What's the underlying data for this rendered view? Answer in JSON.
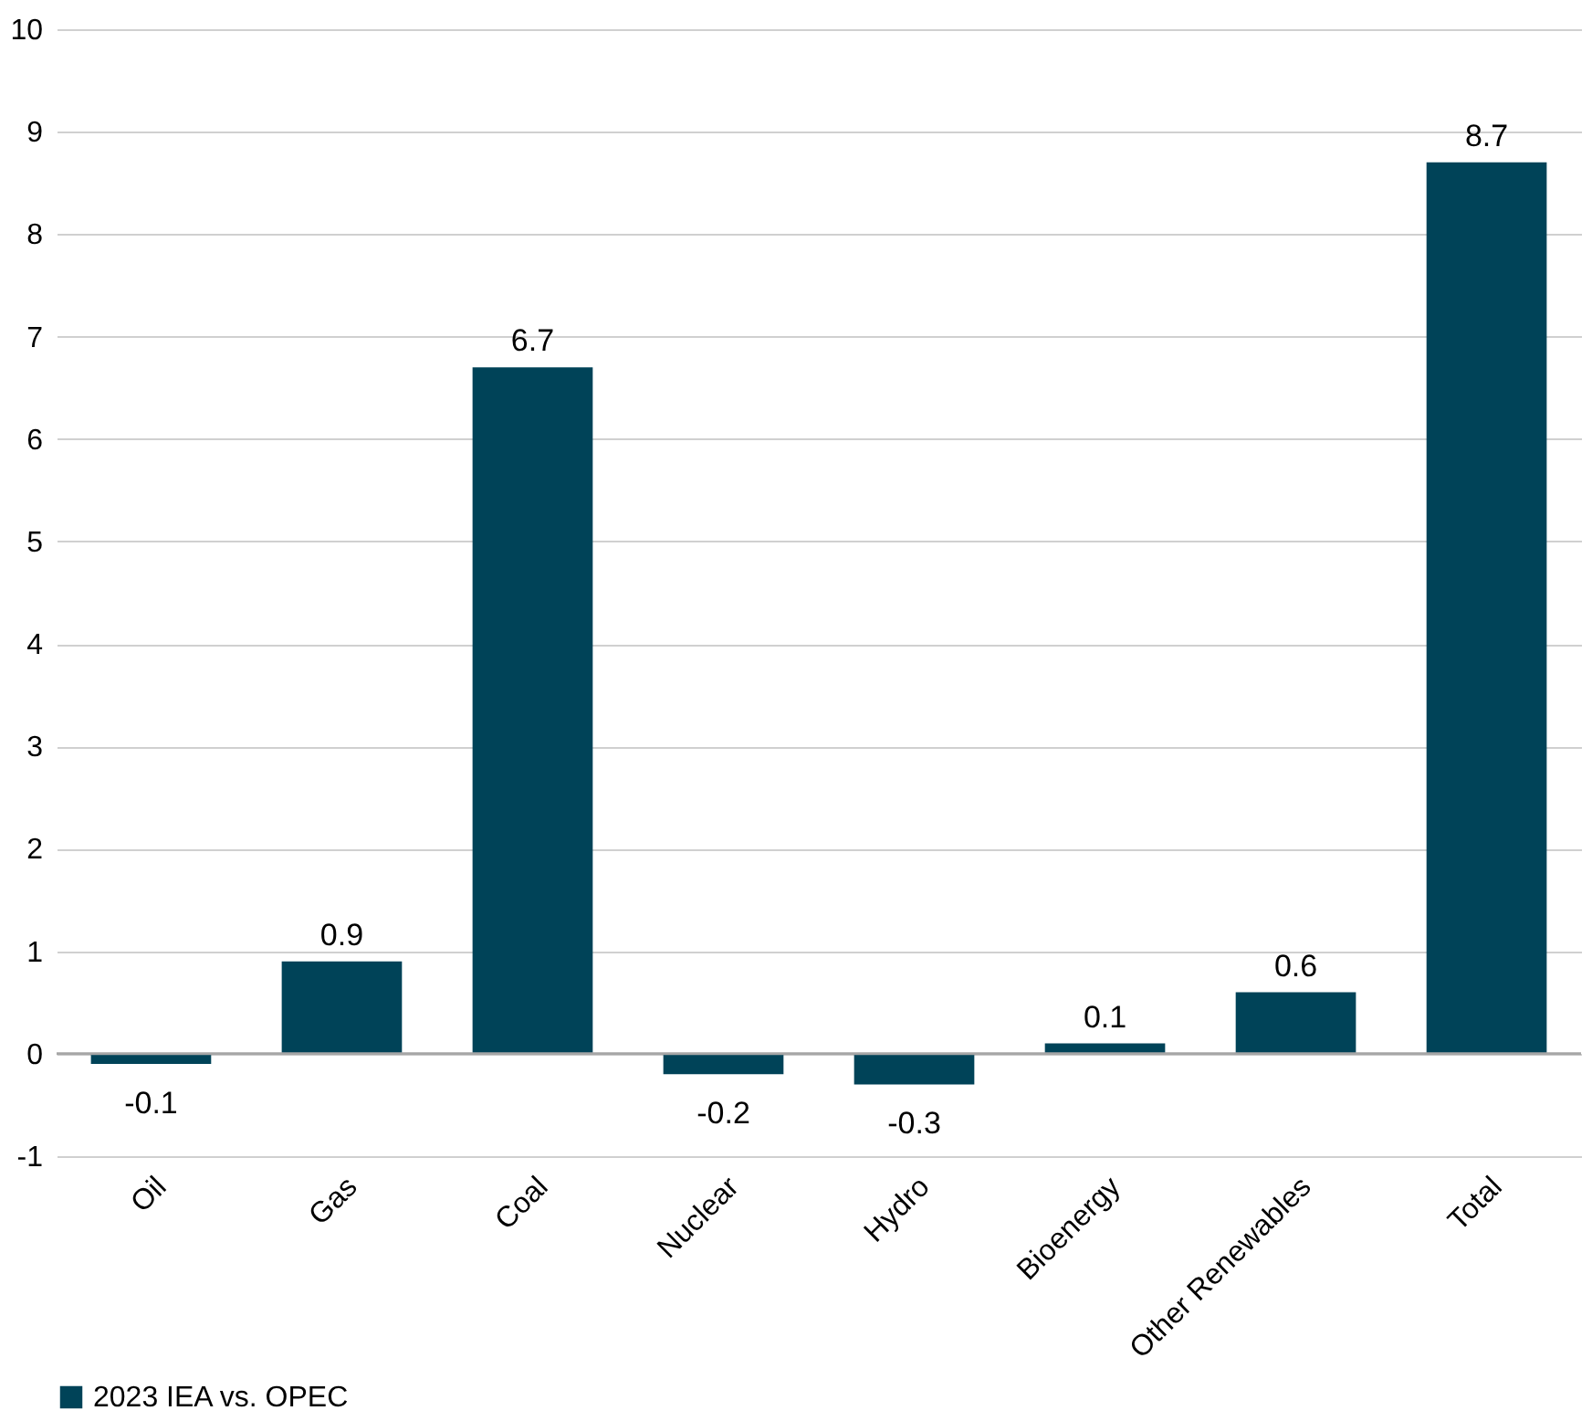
{
  "chart_data": {
    "type": "bar",
    "categories": [
      "Oil",
      "Gas",
      "Coal",
      "Nuclear",
      "Hydro",
      "Bioenergy",
      "Other Renewables",
      "Total"
    ],
    "series": [
      {
        "name": "2023 IEA vs. OPEC",
        "color": "#004358",
        "values": [
          -0.1,
          0.9,
          6.7,
          -0.2,
          -0.3,
          0.1,
          0.6,
          8.7
        ]
      }
    ],
    "ylim": [
      -1,
      10
    ],
    "yticks": [
      -1,
      0,
      1,
      2,
      3,
      4,
      5,
      6,
      7,
      8,
      9,
      10
    ],
    "grid": "y",
    "legend": "bottom",
    "data_labels": true
  }
}
